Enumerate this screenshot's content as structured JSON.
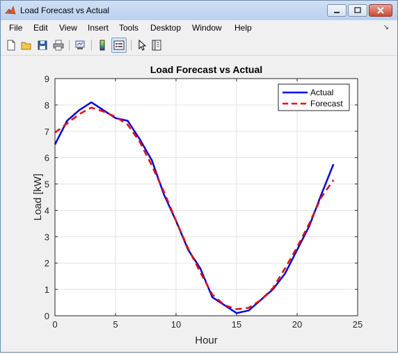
{
  "window": {
    "title": "Load Forecast vs Actual",
    "buttons": [
      "minimize-icon",
      "restore-icon",
      "close-icon"
    ]
  },
  "menu": {
    "items": [
      "File",
      "Edit",
      "View",
      "Insert",
      "Tools",
      "Desktop",
      "Window",
      "Help"
    ]
  },
  "toolbar": {
    "icons": [
      "new-figure-icon",
      "open-file-icon",
      "save-icon",
      "print-icon",
      "link-plot-icon",
      "colorbar-icon",
      "legend-icon",
      "pointer-icon",
      "property-inspector-icon"
    ]
  },
  "chart_data": {
    "type": "line",
    "title": "Load Forecast vs Actual",
    "xlabel": "Hour",
    "ylabel": "Load [kW]",
    "xlim": [
      0,
      25
    ],
    "ylim": [
      0,
      9
    ],
    "xticks": [
      0,
      5,
      10,
      15,
      20,
      25
    ],
    "yticks": [
      0,
      1,
      2,
      3,
      4,
      5,
      6,
      7,
      8,
      9
    ],
    "grid": true,
    "legend_position": "top-right",
    "x": [
      0,
      1,
      2,
      3,
      4,
      5,
      6,
      7,
      8,
      9,
      10,
      11,
      12,
      13,
      14,
      15,
      16,
      17,
      18,
      19,
      20,
      21,
      22,
      23
    ],
    "series": [
      {
        "name": "Actual",
        "color": "#0000ff",
        "style": "solid",
        "values": [
          6.5,
          7.4,
          7.8,
          8.1,
          7.8,
          7.5,
          7.4,
          6.7,
          5.9,
          4.6,
          3.6,
          2.5,
          1.8,
          0.7,
          0.4,
          0.1,
          0.2,
          0.6,
          1.0,
          1.6,
          2.5,
          3.4,
          4.6,
          5.75
        ]
      },
      {
        "name": "Forecast",
        "color": "#ff0000",
        "style": "dashed",
        "values": [
          6.95,
          7.3,
          7.65,
          7.9,
          7.75,
          7.55,
          7.25,
          6.6,
          5.7,
          4.7,
          3.6,
          2.55,
          1.65,
          0.8,
          0.4,
          0.25,
          0.3,
          0.6,
          1.05,
          1.8,
          2.6,
          3.5,
          4.5,
          5.15
        ]
      }
    ]
  }
}
